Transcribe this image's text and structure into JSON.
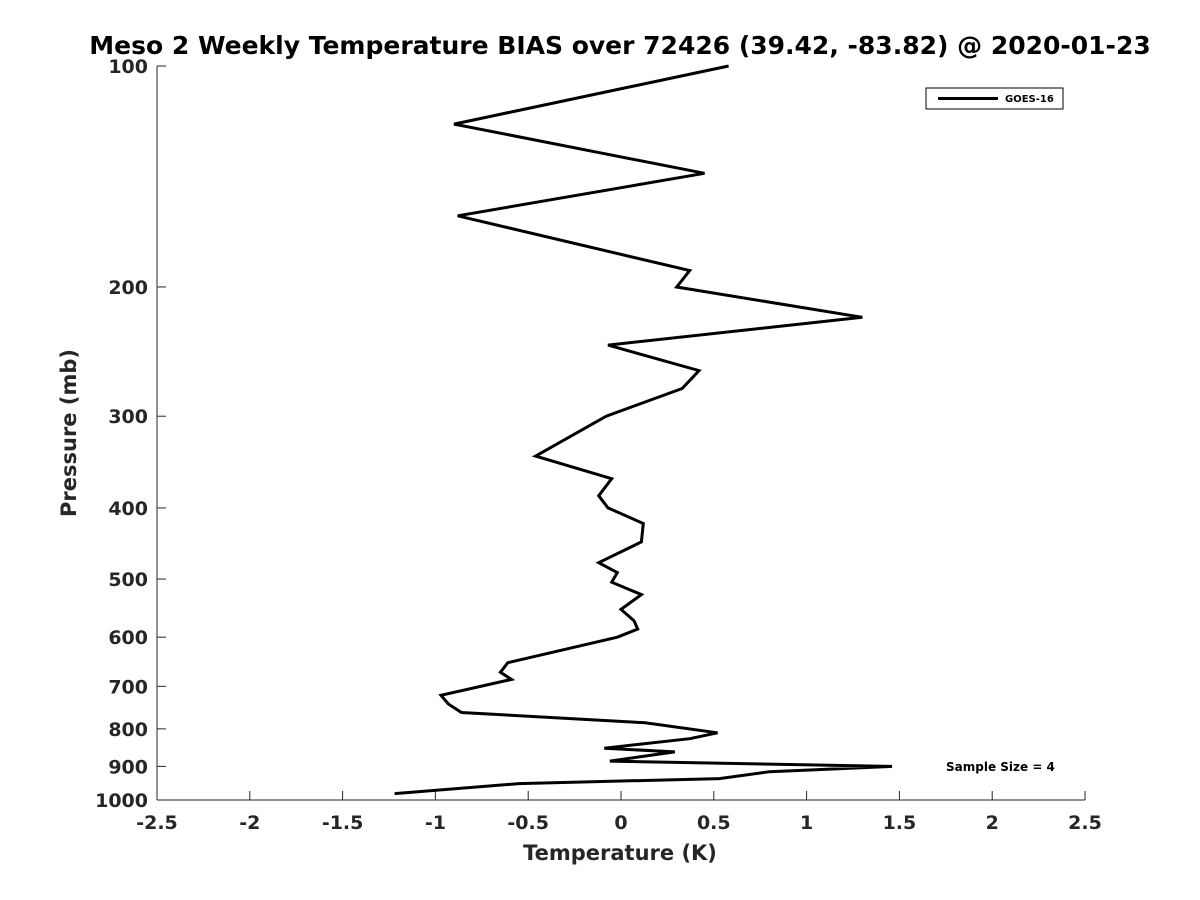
{
  "chart_data": {
    "type": "line",
    "title": "Meso 2 Weekly Temperature BIAS over 72426 (39.42, -83.82) @ 2020-01-23",
    "xlabel": "Temperature (K)",
    "ylabel": "Pressure (mb)",
    "xlim": [
      -2.5,
      2.5
    ],
    "ylim": [
      100,
      1000
    ],
    "y_scale": "log",
    "y_reversed": true,
    "grid": false,
    "legend_position": "top-right",
    "xticks": [
      -2.5,
      -2,
      -1.5,
      -1,
      -0.5,
      0,
      0.5,
      1,
      1.5,
      2,
      2.5
    ],
    "xtick_labels": [
      "-2.5",
      "-2",
      "-1.5",
      "-1",
      "-0.5",
      "0",
      "0.5",
      "1",
      "1.5",
      "2",
      "2.5"
    ],
    "yticks": [
      100,
      200,
      300,
      400,
      500,
      600,
      700,
      800,
      900,
      1000
    ],
    "ytick_labels": [
      "100",
      "200",
      "300",
      "400",
      "500",
      "600",
      "700",
      "800",
      "900",
      "1000"
    ],
    "annotation": "Sample Size = 4",
    "series": [
      {
        "name": "GOES-16",
        "color": "#000000",
        "points": [
          {
            "x": 0.58,
            "y": 100
          },
          {
            "x": -0.9,
            "y": 120
          },
          {
            "x": 0.45,
            "y": 140
          },
          {
            "x": -0.88,
            "y": 160
          },
          {
            "x": 0.37,
            "y": 190
          },
          {
            "x": 0.3,
            "y": 200
          },
          {
            "x": 1.3,
            "y": 220
          },
          {
            "x": -0.07,
            "y": 240
          },
          {
            "x": 0.42,
            "y": 260
          },
          {
            "x": 0.33,
            "y": 275
          },
          {
            "x": -0.08,
            "y": 300
          },
          {
            "x": -0.46,
            "y": 340
          },
          {
            "x": -0.05,
            "y": 365
          },
          {
            "x": -0.12,
            "y": 385
          },
          {
            "x": -0.07,
            "y": 400
          },
          {
            "x": 0.12,
            "y": 420
          },
          {
            "x": 0.11,
            "y": 445
          },
          {
            "x": -0.12,
            "y": 475
          },
          {
            "x": -0.02,
            "y": 490
          },
          {
            "x": -0.05,
            "y": 505
          },
          {
            "x": 0.11,
            "y": 525
          },
          {
            "x": 0.0,
            "y": 550
          },
          {
            "x": 0.07,
            "y": 570
          },
          {
            "x": 0.09,
            "y": 585
          },
          {
            "x": -0.02,
            "y": 600
          },
          {
            "x": -0.61,
            "y": 650
          },
          {
            "x": -0.65,
            "y": 670
          },
          {
            "x": -0.59,
            "y": 685
          },
          {
            "x": -0.97,
            "y": 720
          },
          {
            "x": -0.93,
            "y": 740
          },
          {
            "x": -0.86,
            "y": 760
          },
          {
            "x": 0.13,
            "y": 785
          },
          {
            "x": 0.52,
            "y": 810
          },
          {
            "x": 0.37,
            "y": 825
          },
          {
            "x": -0.09,
            "y": 850
          },
          {
            "x": 0.29,
            "y": 860
          },
          {
            "x": -0.06,
            "y": 885
          },
          {
            "x": 1.46,
            "y": 900
          },
          {
            "x": 0.8,
            "y": 915
          },
          {
            "x": 0.53,
            "y": 935
          },
          {
            "x": -0.55,
            "y": 950
          },
          {
            "x": -1.22,
            "y": 980
          }
        ]
      }
    ]
  }
}
